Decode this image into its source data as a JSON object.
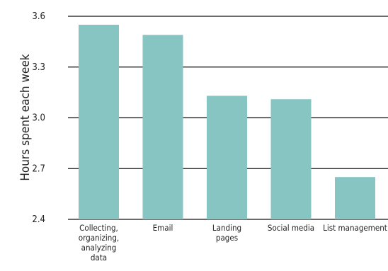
{
  "chart_data": {
    "type": "bar",
    "title": "",
    "xlabel": "",
    "ylabel": "Hours spent each week",
    "ylim": [
      2.4,
      3.6
    ],
    "yticks": [
      "3.6",
      "3.3",
      "3.0",
      "2.7",
      "2.4"
    ],
    "grid": true,
    "categories": [
      [
        "Collecting,",
        "organizing,",
        "analyzing",
        "data"
      ],
      [
        "Email"
      ],
      [
        "Landing",
        "pages"
      ],
      [
        "Social media"
      ],
      [
        "List management"
      ]
    ],
    "values": [
      3.55,
      3.49,
      3.13,
      3.11,
      2.65
    ],
    "bar_color": "#86c5c2",
    "grid_color": "#111111"
  }
}
